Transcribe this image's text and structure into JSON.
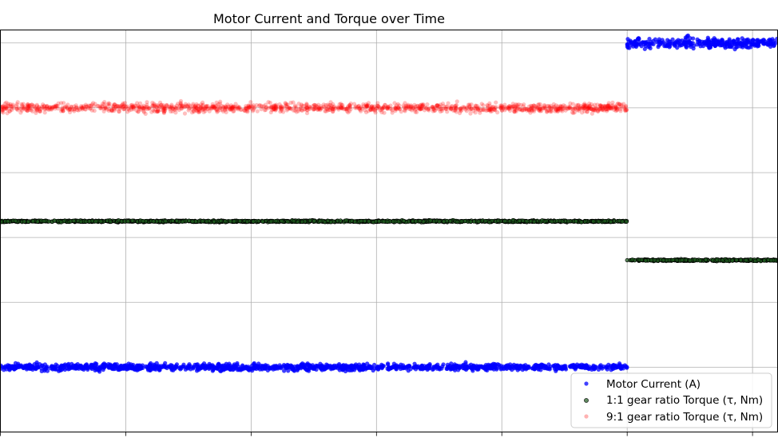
{
  "chart_data": {
    "type": "scatter",
    "title": "Motor Current and Torque over Time",
    "xlabel": "",
    "ylabel": "",
    "xlim": [
      0.0,
      6.2
    ],
    "ylim": [
      0.0,
      6.2
    ],
    "grid": true,
    "legend_placement": "bottom-right",
    "x_ticks": [
      0,
      1,
      2,
      3,
      4,
      5,
      6
    ],
    "y_ticks": [
      1,
      2,
      3,
      4,
      5,
      6
    ],
    "series": [
      {
        "name": "Motor Current (A)",
        "color": "#0000ff",
        "segments": [
          {
            "x_start": 0.0,
            "x_end": 5.0,
            "level": 1.0,
            "spread": 0.025
          },
          {
            "x_start": 5.0,
            "x_end": 6.2,
            "level": 6.0,
            "spread": 0.04
          }
        ]
      },
      {
        "name": "1:1 gear ratio Torque (τ, Nm)",
        "color": "#1e5a1e",
        "edge_color": "#000000",
        "segments": [
          {
            "x_start": 0.0,
            "x_end": 5.0,
            "level": 3.25,
            "spread": 0.006
          },
          {
            "x_start": 5.0,
            "x_end": 6.2,
            "level": 2.65,
            "spread": 0.006
          }
        ]
      },
      {
        "name": "9:1 gear ratio Torque (τ, Nm)",
        "color": "#ff0000",
        "segments": [
          {
            "x_start": 0.0,
            "x_end": 5.0,
            "level": 5.0,
            "spread": 0.035
          }
        ]
      }
    ]
  }
}
